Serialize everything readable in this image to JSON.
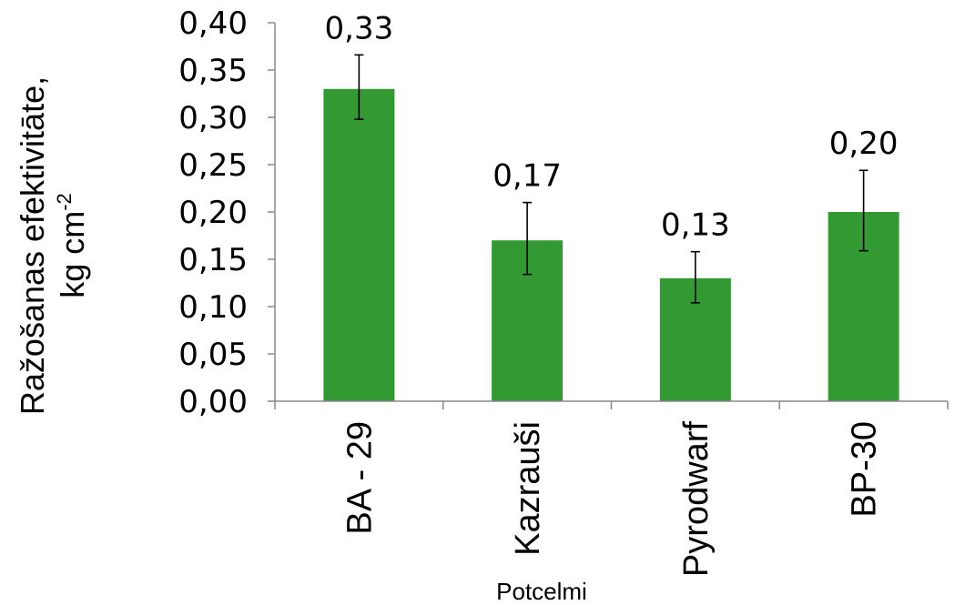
{
  "chart_data": {
    "type": "bar",
    "categories": [
      "BA - 29",
      "Kazrauši",
      "Pyrodwarf",
      "BP-30"
    ],
    "values": [
      0.33,
      0.17,
      0.13,
      0.2
    ],
    "data_labels": [
      "0,33",
      "0,17",
      "0,13",
      "0,20"
    ],
    "error_bars": [
      {
        "low": 0.298,
        "high": 0.366
      },
      {
        "low": 0.134,
        "high": 0.21
      },
      {
        "low": 0.104,
        "high": 0.158
      },
      {
        "low": 0.159,
        "high": 0.244
      }
    ],
    "ylabel_line1": "Ražošanas efektivitāte,",
    "ylabel_line2_base": "kg cm",
    "ylabel_line2_sup": "-2",
    "xlabel": "Potcelmi",
    "ylim": [
      0,
      0.4
    ],
    "yticks": [
      0,
      0.05,
      0.1,
      0.15,
      0.2,
      0.25,
      0.3,
      0.35,
      0.4
    ],
    "ytick_labels": [
      "0,00",
      "0,05",
      "0,10",
      "0,15",
      "0,20",
      "0,25",
      "0,30",
      "0,35",
      "0,40"
    ],
    "bar_color": "#339933",
    "axis_color": "#888888",
    "grid": false,
    "legend": "none"
  }
}
